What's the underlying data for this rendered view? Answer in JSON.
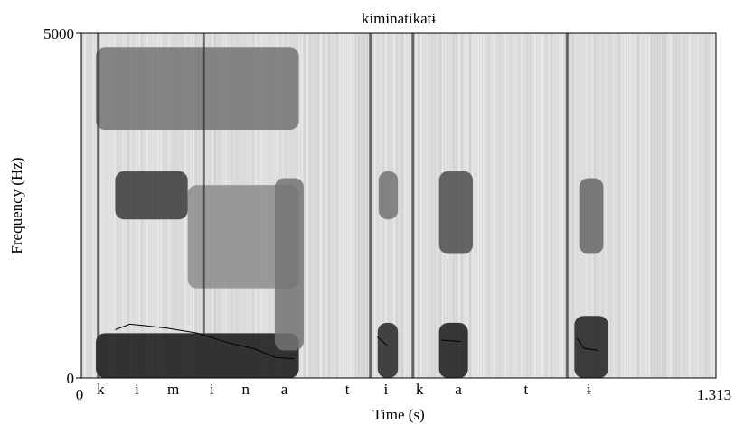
{
  "chart_data": {
    "type": "heatmap",
    "subtype": "spectrogram",
    "title": "kiminatikatɨ",
    "xlabel": "Time (s)",
    "ylabel": "Frequency (Hz)",
    "xlim": [
      0,
      1.313
    ],
    "ylim": [
      0,
      5000
    ],
    "x_tick_labels": [
      "0",
      "1.313"
    ],
    "y_tick_labels": [
      "0",
      "5000"
    ],
    "segments": [
      {
        "label": "k",
        "time": 0.04
      },
      {
        "label": "i",
        "time": 0.115
      },
      {
        "label": "m",
        "time": 0.19
      },
      {
        "label": "i",
        "time": 0.27
      },
      {
        "label": "n",
        "time": 0.34
      },
      {
        "label": "a",
        "time": 0.42
      },
      {
        "label": "t",
        "time": 0.55
      },
      {
        "label": "i",
        "time": 0.63
      },
      {
        "label": "k",
        "time": 0.7
      },
      {
        "label": "a",
        "time": 0.78
      },
      {
        "label": "t",
        "time": 0.92
      },
      {
        "label": "ɨ",
        "time": 1.05
      }
    ],
    "dark_bands": [
      {
        "t0": 0.03,
        "t1": 0.45,
        "f0": 0,
        "f1": 650,
        "darkness": 0.92
      },
      {
        "t0": 0.07,
        "t1": 0.22,
        "f0": 2300,
        "f1": 3000,
        "darkness": 0.78
      },
      {
        "t0": 0.22,
        "t1": 0.45,
        "f0": 1300,
        "f1": 2800,
        "darkness": 0.45
      },
      {
        "t0": 0.03,
        "t1": 0.45,
        "f0": 3600,
        "f1": 4800,
        "darkness": 0.55
      },
      {
        "t0": 0.4,
        "t1": 0.46,
        "f0": 400,
        "f1": 2900,
        "darkness": 0.55
      },
      {
        "t0": 0.613,
        "t1": 0.655,
        "f0": 0,
        "f1": 800,
        "darkness": 0.85
      },
      {
        "t0": 0.615,
        "t1": 0.655,
        "f0": 2300,
        "f1": 3000,
        "darkness": 0.55
      },
      {
        "t0": 0.74,
        "t1": 0.8,
        "f0": 0,
        "f1": 800,
        "darkness": 0.9
      },
      {
        "t0": 0.74,
        "t1": 0.81,
        "f0": 1800,
        "f1": 3000,
        "darkness": 0.7
      },
      {
        "t0": 1.02,
        "t1": 1.09,
        "f0": 0,
        "f1": 900,
        "darkness": 0.88
      },
      {
        "t0": 1.03,
        "t1": 1.08,
        "f0": 1800,
        "f1": 2900,
        "darkness": 0.6
      }
    ],
    "vertical_bursts": [
      0.035,
      0.253,
      0.598,
      0.686,
      1.005
    ],
    "pitch_contours": [
      [
        [
          0.07,
          700
        ],
        [
          0.1,
          780
        ],
        [
          0.13,
          760
        ],
        [
          0.18,
          720
        ],
        [
          0.24,
          650
        ],
        [
          0.3,
          520
        ],
        [
          0.36,
          420
        ],
        [
          0.4,
          300
        ],
        [
          0.44,
          280
        ]
      ],
      [
        [
          0.612,
          600
        ],
        [
          0.633,
          470
        ]
      ],
      [
        [
          0.745,
          550
        ],
        [
          0.785,
          530
        ]
      ],
      [
        [
          1.025,
          580
        ],
        [
          1.04,
          430
        ],
        [
          1.07,
          400
        ]
      ]
    ],
    "grid": false,
    "legend": "none"
  }
}
